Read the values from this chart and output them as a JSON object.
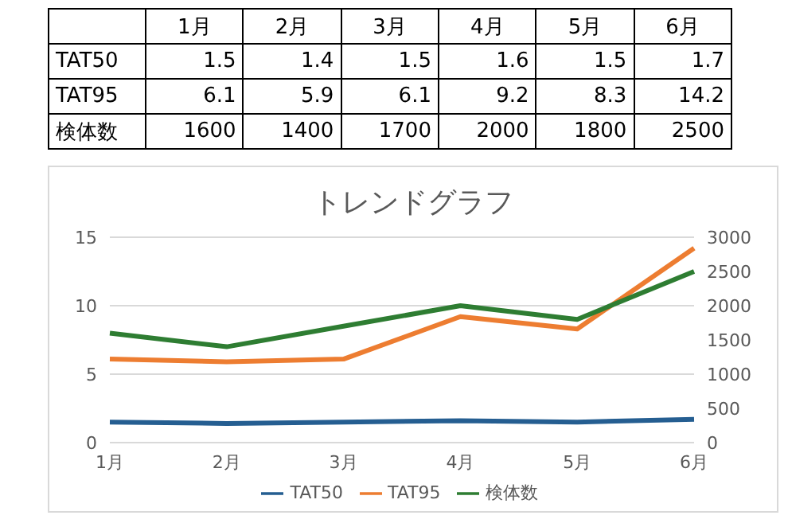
{
  "chart_data": [
    {
      "type": "heatmap",
      "categories": [
        "1月",
        "2月",
        "3月",
        "4月",
        "5月",
        "6月"
      ],
      "data_labels": true,
      "y_categories": [
        "TAT50",
        "TAT95",
        "検体数"
      ],
      "cells": [
        [
          1.5,
          1.4,
          1.5,
          1.6,
          1.5,
          1.7
        ],
        [
          6.1,
          5.9,
          6.1,
          9.2,
          8.3,
          14.2
        ],
        [
          1600,
          1400,
          1700,
          2000,
          1800,
          2500
        ]
      ]
    },
    {
      "type": "line",
      "title": "トレンドグラフ",
      "categories": [
        "1月",
        "2月",
        "3月",
        "4月",
        "5月",
        "6月"
      ],
      "series": [
        {
          "name": "TAT50",
          "color": "#255e91",
          "values": [
            1.5,
            1.4,
            1.5,
            1.6,
            1.5,
            1.7
          ]
        },
        {
          "name": "TAT95",
          "color": "#ed7d31",
          "values": [
            6.1,
            5.9,
            6.1,
            9.2,
            8.3,
            14.2
          ]
        },
        {
          "name": "検体数",
          "color": "#2e7d32",
          "axis": "y2",
          "values": [
            1600,
            1400,
            1700,
            2000,
            1800,
            2500
          ]
        }
      ],
      "ylim": [
        0,
        15
      ],
      "yticks": [
        0,
        5,
        10,
        15
      ],
      "y2lim": [
        0,
        3000
      ],
      "y2ticks": [
        0,
        500,
        1000,
        1500,
        2000,
        2500,
        3000
      ],
      "grid": "y",
      "legend": "bottom"
    }
  ]
}
